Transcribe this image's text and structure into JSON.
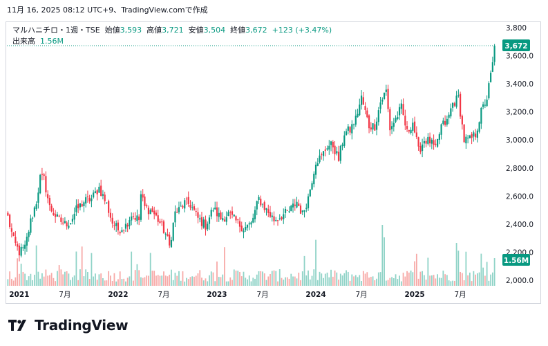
{
  "header": {
    "timestamp": "11月 16, 2025 08:12 UTC+9、TradingView.comで作成"
  },
  "legend": {
    "symbol": "マルハニチロ・1週・TSE",
    "open_label": "始値",
    "open_value": "3,593",
    "high_label": "高値",
    "high_value": "3,721",
    "low_label": "安値",
    "low_value": "3,504",
    "close_label": "終値",
    "close_value": "3,672",
    "change": "+123 (+3.47%)",
    "volume_label": "出来高",
    "volume_value": "1.56M"
  },
  "price_tag": "3,672",
  "volume_tag": "1.56M",
  "footer": {
    "brand": "TradingView"
  },
  "colors": {
    "up": "#089981",
    "down": "#f23645",
    "up_vol": "#8fd3c7",
    "down_vol": "#f7a9a7"
  },
  "chart_data": {
    "type": "candlestick",
    "interval": "1 week",
    "y_ticks": [
      "2,000.0",
      "2,200.0",
      "2,400.0",
      "2,600.0",
      "2,800.0",
      "3,000.0",
      "3,200.0",
      "3,400.0",
      "3,600.0",
      "3,800"
    ],
    "y_tick_values": [
      2000,
      2200,
      2400,
      2600,
      2800,
      3000,
      3200,
      3400,
      3600,
      3800
    ],
    "ylim": [
      1960,
      3840
    ],
    "x_ticks": [
      "2021",
      "7月",
      "2022",
      "7月",
      "2023",
      "7月",
      "2024",
      "7月",
      "2025",
      "7月"
    ],
    "x_tick_weeks": [
      6,
      30,
      58,
      82,
      110,
      134,
      162,
      186,
      214,
      238
    ],
    "n_weeks": 257,
    "last_close": 3672,
    "close_anchors": [
      [
        0,
        2450
      ],
      [
        3,
        2280
      ],
      [
        6,
        2200
      ],
      [
        9,
        2230
      ],
      [
        12,
        2420
      ],
      [
        15,
        2560
      ],
      [
        17,
        2730
      ],
      [
        19,
        2720
      ],
      [
        22,
        2520
      ],
      [
        26,
        2440
      ],
      [
        30,
        2400
      ],
      [
        33,
        2420
      ],
      [
        36,
        2500
      ],
      [
        40,
        2560
      ],
      [
        44,
        2580
      ],
      [
        48,
        2660
      ],
      [
        52,
        2540
      ],
      [
        55,
        2410
      ],
      [
        58,
        2360
      ],
      [
        62,
        2390
      ],
      [
        65,
        2470
      ],
      [
        69,
        2430
      ],
      [
        70,
        2610
      ],
      [
        72,
        2520
      ],
      [
        76,
        2490
      ],
      [
        80,
        2410
      ],
      [
        83,
        2330
      ],
      [
        85,
        2240
      ],
      [
        88,
        2480
      ],
      [
        90,
        2500
      ],
      [
        93,
        2550
      ],
      [
        96,
        2540
      ],
      [
        100,
        2440
      ],
      [
        104,
        2390
      ],
      [
        108,
        2510
      ],
      [
        112,
        2440
      ],
      [
        116,
        2470
      ],
      [
        120,
        2420
      ],
      [
        124,
        2370
      ],
      [
        128,
        2400
      ],
      [
        132,
        2580
      ],
      [
        136,
        2500
      ],
      [
        140,
        2430
      ],
      [
        144,
        2460
      ],
      [
        148,
        2490
      ],
      [
        152,
        2560
      ],
      [
        155,
        2470
      ],
      [
        158,
        2590
      ],
      [
        162,
        2850
      ],
      [
        165,
        2880
      ],
      [
        168,
        2960
      ],
      [
        171,
        2960
      ],
      [
        174,
        2860
      ],
      [
        177,
        3050
      ],
      [
        180,
        3070
      ],
      [
        183,
        3150
      ],
      [
        186,
        3300
      ],
      [
        188,
        3200
      ],
      [
        190,
        3100
      ],
      [
        193,
        3100
      ],
      [
        196,
        3270
      ],
      [
        199,
        3350
      ],
      [
        201,
        3080
      ],
      [
        204,
        3150
      ],
      [
        207,
        3230
      ],
      [
        210,
        3050
      ],
      [
        213,
        3130
      ],
      [
        216,
        2920
      ],
      [
        219,
        3000
      ],
      [
        222,
        2990
      ],
      [
        225,
        2930
      ],
      [
        228,
        3100
      ],
      [
        231,
        3130
      ],
      [
        234,
        3260
      ],
      [
        237,
        3300
      ],
      [
        240,
        3000
      ],
      [
        243,
        3000
      ],
      [
        246,
        3040
      ],
      [
        249,
        3200
      ],
      [
        252,
        3300
      ],
      [
        255,
        3540
      ],
      [
        258,
        3450
      ],
      [
        261,
        3500
      ],
      [
        263,
        3420
      ],
      [
        265,
        3500
      ],
      [
        267,
        3600
      ],
      [
        256,
        3672
      ]
    ]
  }
}
